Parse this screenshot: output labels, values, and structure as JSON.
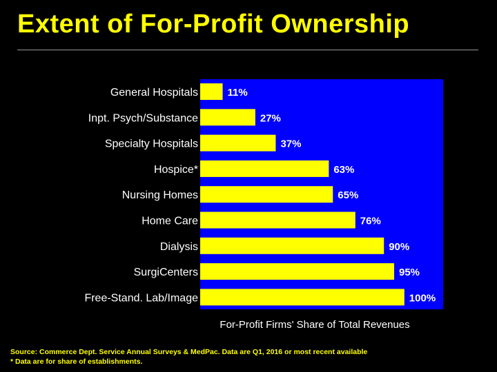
{
  "slide": {
    "title": "Extent of For-Profit Ownership",
    "source_note": "Source: Commerce Dept. Service Annual Surveys & MedPac. Data are Q1, 2016 or most recent available",
    "establishments_note": "* Data are for share of establishments."
  },
  "colors": {
    "background": "#000000",
    "title": "#ffff00",
    "plot_area": "#0000ff",
    "bar": "#ffff00",
    "label_text": "#ffffff"
  },
  "chart_data": {
    "type": "bar",
    "orientation": "horizontal",
    "categories": [
      "General Hospitals",
      "Inpt. Psych/Substance",
      "Specialty Hospitals",
      "Hospice*",
      "Nursing Homes",
      "Home Care",
      "Dialysis",
      "SurgiCenters",
      "Free-Stand. Lab/Image"
    ],
    "values": [
      11,
      27,
      37,
      63,
      65,
      76,
      90,
      95,
      100
    ],
    "value_labels": [
      "11%",
      "27%",
      "37%",
      "63%",
      "65%",
      "76%",
      "90%",
      "95%",
      "100%"
    ],
    "xlabel": "For-Profit Firms' Share of Total Revenues",
    "xlim": [
      0,
      119
    ],
    "grid": false,
    "legend": "none"
  }
}
